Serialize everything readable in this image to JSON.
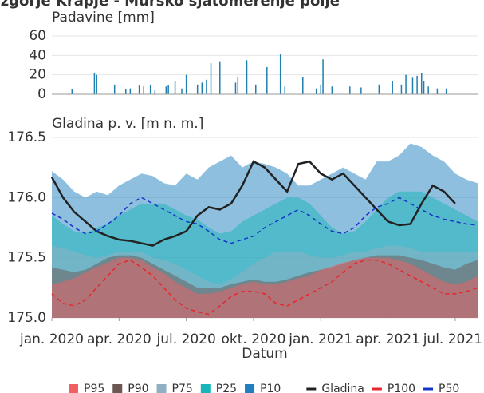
{
  "chart_data": [
    {
      "type": "bar",
      "title": "Izgorje Krapje - Mursko sjatomerenje polje",
      "ylabel": "Padavine [mm]",
      "x": [
        0.9,
        1.9,
        2.0,
        2.8,
        3.3,
        3.5,
        3.9,
        4.1,
        4.4,
        4.6,
        5.1,
        5.2,
        5.5,
        5.8,
        6.0,
        6.5,
        6.7,
        6.9,
        7.1,
        7.5,
        8.2,
        8.3,
        8.7,
        9.1,
        9.6,
        10.2,
        10.4,
        11.2,
        11.8,
        12.0,
        12.1,
        12.5,
        13.3,
        13.8,
        14.6,
        15.2,
        15.6,
        15.8,
        16.1,
        16.3,
        16.5,
        16.6,
        16.8,
        17.2,
        17.6
      ],
      "values": [
        5,
        22,
        20,
        10,
        5,
        6,
        9,
        8,
        10,
        4,
        8,
        9,
        13,
        6,
        20,
        10,
        12,
        15,
        32,
        34,
        12,
        18,
        35,
        10,
        28,
        41,
        8,
        18,
        6,
        10,
        36,
        8,
        8,
        7,
        10,
        14,
        10,
        20,
        17,
        19,
        22,
        14,
        8,
        6,
        6
      ],
      "color": "#1f7fb0",
      "xlim": [
        0,
        19
      ],
      "ylim": [
        0,
        60
      ],
      "yticks": [
        0,
        20,
        40,
        60
      ],
      "grid": true
    },
    {
      "type": "area",
      "ylabel": "Gladina p. v. [m n. m.]",
      "xlabel": "Datum",
      "x": [
        0,
        0.5,
        1,
        1.5,
        2,
        2.5,
        3,
        3.5,
        4,
        4.5,
        5,
        5.5,
        6,
        6.5,
        7,
        7.5,
        8,
        8.5,
        9,
        9.5,
        10,
        10.5,
        11,
        11.5,
        12,
        12.5,
        13,
        13.5,
        14,
        14.5,
        15,
        15.5,
        16,
        16.5,
        17,
        17.5,
        18,
        18.5,
        19
      ],
      "xlim": [
        0,
        19
      ],
      "xticks": [
        {
          "value": 0,
          "label": "jan. 2020"
        },
        {
          "value": 3,
          "label": "apr. 2020"
        },
        {
          "value": 6,
          "label": "jul. 2020"
        },
        {
          "value": 9,
          "label": "okt. 2020"
        },
        {
          "value": 12,
          "label": "jan. 2021"
        },
        {
          "value": 15,
          "label": "apr. 2021"
        },
        {
          "value": 18,
          "label": "jul. 2021"
        }
      ],
      "ylim": [
        175,
        176.5
      ],
      "yticks": [
        {
          "value": 175,
          "label": "175.0"
        },
        {
          "value": 175.5,
          "label": "175.5"
        },
        {
          "value": 176,
          "label": "176.0"
        },
        {
          "value": 176.5,
          "label": "176.5"
        }
      ],
      "grid": true,
      "legend": "bottom",
      "series": [
        {
          "name": "P95",
          "kind": "area",
          "color": "#ef5f64",
          "values": [
            175.28,
            175.3,
            175.33,
            175.38,
            175.42,
            175.46,
            175.5,
            175.5,
            175.48,
            175.42,
            175.37,
            175.3,
            175.25,
            175.2,
            175.2,
            175.22,
            175.25,
            175.28,
            175.3,
            175.28,
            175.28,
            175.3,
            175.33,
            175.35,
            175.4,
            175.43,
            175.46,
            175.48,
            175.5,
            175.5,
            175.5,
            175.48,
            175.45,
            175.4,
            175.35,
            175.3,
            175.28,
            175.3,
            175.35
          ]
        },
        {
          "name": "P90",
          "kind": "area",
          "color": "#6b5853",
          "values": [
            175.42,
            175.4,
            175.38,
            175.4,
            175.45,
            175.5,
            175.52,
            175.52,
            175.5,
            175.45,
            175.4,
            175.35,
            175.3,
            175.25,
            175.25,
            175.25,
            175.28,
            175.3,
            175.32,
            175.3,
            175.3,
            175.32,
            175.35,
            175.38,
            175.4,
            175.42,
            175.45,
            175.48,
            175.5,
            175.52,
            175.52,
            175.52,
            175.5,
            175.48,
            175.45,
            175.42,
            175.4,
            175.45,
            175.48
          ]
        },
        {
          "name": "P75",
          "kind": "area",
          "color": "#8fb0c2",
          "values": [
            175.6,
            175.58,
            175.55,
            175.52,
            175.5,
            175.52,
            175.55,
            175.55,
            175.55,
            175.5,
            175.48,
            175.45,
            175.4,
            175.35,
            175.3,
            175.28,
            175.32,
            175.38,
            175.45,
            175.5,
            175.55,
            175.55,
            175.55,
            175.52,
            175.5,
            175.5,
            175.52,
            175.55,
            175.55,
            175.58,
            175.6,
            175.6,
            175.58,
            175.55,
            175.55,
            175.55,
            175.55,
            175.55,
            175.55
          ]
        },
        {
          "name": "P25",
          "kind": "area",
          "color": "#17b6b8",
          "values": [
            175.85,
            175.78,
            175.72,
            175.7,
            175.75,
            175.78,
            175.85,
            175.9,
            175.95,
            175.95,
            175.95,
            175.9,
            175.85,
            175.82,
            175.75,
            175.7,
            175.72,
            175.8,
            175.85,
            175.9,
            175.95,
            176.0,
            176.0,
            175.95,
            175.85,
            175.75,
            175.7,
            175.72,
            175.8,
            175.9,
            176.0,
            176.05,
            176.05,
            176.05,
            176.0,
            175.95,
            175.9,
            175.85,
            175.8
          ]
        },
        {
          "name": "P10",
          "kind": "area",
          "color": "#1f7fbf",
          "values": [
            176.22,
            176.15,
            176.05,
            176.0,
            176.05,
            176.02,
            176.1,
            176.15,
            176.2,
            176.18,
            176.12,
            176.1,
            176.2,
            176.15,
            176.25,
            176.3,
            176.35,
            176.25,
            176.3,
            176.28,
            176.25,
            176.2,
            176.1,
            176.1,
            176.15,
            176.2,
            176.25,
            176.2,
            176.15,
            176.3,
            176.3,
            176.35,
            176.45,
            176.42,
            176.35,
            176.3,
            176.2,
            176.15,
            176.12
          ]
        },
        {
          "name": "Gladina",
          "kind": "line",
          "color": "#222222",
          "values": [
            176.17,
            176.0,
            175.88,
            175.8,
            175.72,
            175.68,
            175.65,
            175.64,
            175.62,
            175.6,
            175.65,
            175.68,
            175.72,
            175.85,
            175.92,
            175.9,
            175.95,
            176.1,
            176.3,
            176.25,
            176.15,
            176.05,
            176.28,
            176.3,
            176.2,
            176.15,
            176.2,
            176.1,
            176.0,
            175.9,
            175.8,
            175.77,
            175.78,
            175.95,
            176.1,
            176.05,
            175.95,
            null,
            null
          ]
        },
        {
          "name": "P100",
          "kind": "dashed",
          "color": "#e8262b",
          "values": [
            175.2,
            175.12,
            175.1,
            175.15,
            175.25,
            175.35,
            175.45,
            175.48,
            175.42,
            175.35,
            175.25,
            175.15,
            175.08,
            175.05,
            175.03,
            175.1,
            175.18,
            175.22,
            175.22,
            175.2,
            175.12,
            175.1,
            175.15,
            175.2,
            175.25,
            175.3,
            175.38,
            175.45,
            175.48,
            175.48,
            175.45,
            175.4,
            175.35,
            175.3,
            175.25,
            175.2,
            175.2,
            175.22,
            175.25
          ]
        },
        {
          "name": "P50",
          "kind": "dashed",
          "color": "#1533c8",
          "values": [
            175.87,
            175.82,
            175.75,
            175.7,
            175.72,
            175.78,
            175.85,
            175.95,
            176.0,
            175.95,
            175.9,
            175.85,
            175.8,
            175.78,
            175.72,
            175.65,
            175.62,
            175.65,
            175.68,
            175.75,
            175.8,
            175.85,
            175.9,
            175.85,
            175.78,
            175.72,
            175.7,
            175.75,
            175.85,
            175.92,
            175.95,
            176.0,
            175.95,
            175.9,
            175.85,
            175.82,
            175.8,
            175.78,
            175.77
          ]
        }
      ]
    }
  ]
}
